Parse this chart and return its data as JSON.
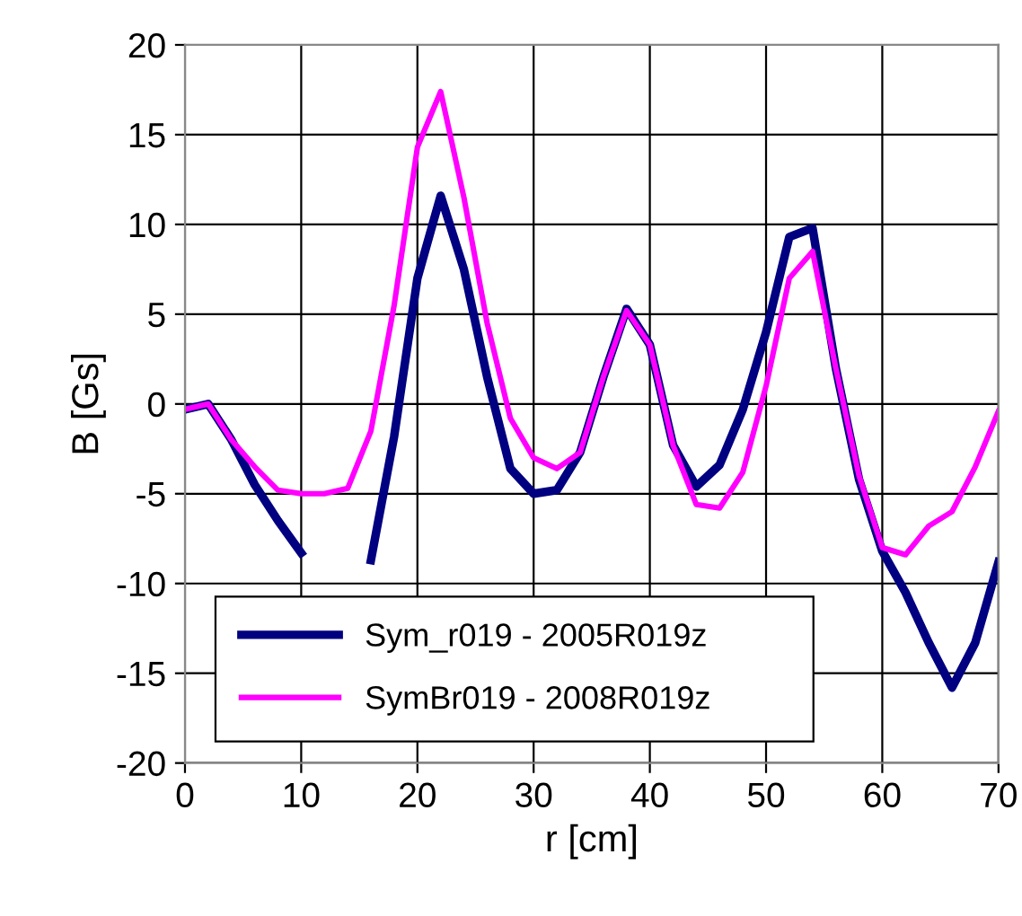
{
  "chart_data": {
    "type": "line",
    "xlabel": "r [cm]",
    "ylabel": "B [Gs]",
    "x": [
      0,
      2,
      4,
      6,
      8,
      10,
      12,
      14,
      16,
      18,
      20,
      22,
      24,
      26,
      28,
      30,
      32,
      34,
      36,
      38,
      40,
      42,
      44,
      46,
      48,
      50,
      52,
      54,
      56,
      58,
      60,
      62,
      64,
      66,
      68,
      70
    ],
    "series": [
      {
        "name": "Sym_r019 - 2005R019z",
        "color": "#000080",
        "values": [
          -0.3,
          0,
          -2,
          -4.5,
          -6.5,
          -8.3,
          null,
          null,
          -8.7,
          -1.8,
          7,
          11.6,
          7.5,
          1.5,
          -3.6,
          -5,
          -4.8,
          -2.7,
          1.5,
          5.3,
          3.3,
          -2.3,
          -4.6,
          -3.4,
          -0.3,
          4,
          9.3,
          9.8,
          2,
          -4.2,
          -8.2,
          -10.5,
          -13.3,
          -15.8,
          -13.3,
          -8.8
        ]
      },
      {
        "name": "SymBr019 - 2008R019z",
        "color": "#ff00ff",
        "values": [
          -0.3,
          0,
          -2,
          -3.5,
          -4.8,
          -5,
          -5,
          -4.7,
          -1.5,
          5.5,
          14.3,
          17.4,
          11.5,
          4.5,
          -0.8,
          -3,
          -3.6,
          -2.7,
          1.5,
          5.2,
          3.3,
          -2.3,
          -5.6,
          -5.8,
          -3.8,
          1,
          7,
          8.5,
          2,
          -4,
          -8,
          -8.4,
          -6.8,
          -6,
          -3.5,
          -0.4
        ]
      }
    ],
    "xlim": [
      0,
      70
    ],
    "xticks": [
      0,
      10,
      20,
      30,
      40,
      50,
      60,
      70
    ],
    "ylim": [
      -20,
      20
    ],
    "yticks": [
      -20,
      -15,
      -10,
      -5,
      0,
      5,
      10,
      15,
      20
    ],
    "grid": true,
    "legend": "bottom",
    "marker": "none",
    "line_style": "solid"
  }
}
